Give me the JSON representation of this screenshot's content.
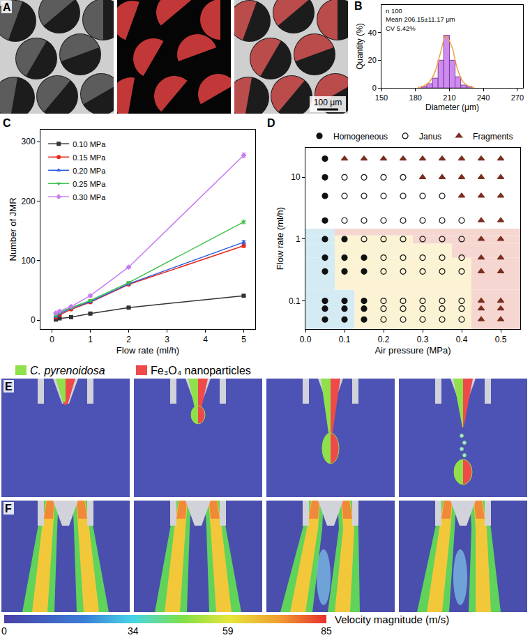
{
  "chart_data": [
    {
      "panel": "B",
      "type": "histogram",
      "annotations": [
        "n 100",
        "Mean 206.15±11.17 μm",
        "CV 5.42%"
      ],
      "x_label": "Diameter (μm)",
      "y_label": "Quantity (%)",
      "bins": [
        185,
        190,
        195,
        200,
        205,
        210,
        215,
        220,
        225,
        230
      ],
      "values": [
        1,
        3,
        7,
        20,
        38,
        20,
        8,
        2,
        1
      ],
      "color": "#cf8cf0",
      "fit": {
        "type": "line",
        "color": "#f0a040",
        "x": [
          182,
          187,
          192,
          197,
          202,
          207,
          212,
          217,
          222,
          227,
          232
        ],
        "values": [
          0.3,
          1.2,
          4,
          11,
          25,
          37.5,
          30,
          14,
          4.5,
          1.2,
          0.3
        ]
      },
      "xlim": [
        150,
        275
      ],
      "xticks": [
        150,
        180,
        210,
        240,
        270
      ],
      "ylim": [
        0,
        60
      ],
      "yticks": [
        0,
        20,
        40
      ]
    },
    {
      "panel": "C",
      "type": "line",
      "x_label": "Flow rate (ml/h)",
      "y_label": "Number of JMR",
      "x": [
        0.1,
        0.2,
        0.5,
        1,
        2,
        5
      ],
      "series": [
        {
          "name": "0.10 MPa",
          "color": "#333333",
          "marker": "square",
          "values": [
            1,
            3,
            5,
            11,
            21,
            41
          ],
          "errors": [
            0.5,
            0.5,
            0.8,
            1,
            1,
            1.5
          ]
        },
        {
          "name": "0.15 MPa",
          "color": "#e8291c",
          "marker": "circle",
          "values": [
            5,
            9,
            18,
            30,
            60,
            125
          ],
          "errors": [
            0.8,
            1,
            1,
            1.5,
            2,
            3
          ]
        },
        {
          "name": "0.20 MPa",
          "color": "#2b5ce0",
          "marker": "triangle-up",
          "values": [
            6,
            11,
            20,
            31,
            61,
            131
          ],
          "errors": [
            0.8,
            1,
            1,
            1.5,
            2,
            3
          ]
        },
        {
          "name": "0.25 MPa",
          "color": "#3cc24a",
          "marker": "triangle-down",
          "values": [
            8,
            13,
            21,
            33,
            63,
            165
          ],
          "errors": [
            1,
            1,
            1.2,
            1.5,
            2,
            3
          ]
        },
        {
          "name": "0.30 MPa",
          "color": "#c77cf2",
          "marker": "diamond",
          "values": [
            12,
            15,
            23,
            41,
            89,
            277
          ],
          "errors": [
            1,
            1,
            1.5,
            2,
            2,
            4
          ]
        }
      ],
      "xlim": [
        -0.3,
        5.3
      ],
      "xticks": [
        0,
        1,
        2,
        3,
        4,
        5
      ],
      "ylim": [
        -15,
        320
      ],
      "yticks": [
        0,
        100,
        200,
        300
      ],
      "legend": "top-left"
    },
    {
      "panel": "D",
      "type": "scatter",
      "log": "y",
      "x_label": "Air pressure (MPa)",
      "y_label": "Flow rate (ml/h)",
      "series": [
        {
          "name": "Homogeneous",
          "color": "#111111",
          "marker": "circle",
          "x": [
            0.05,
            0.1,
            0.15,
            0.05,
            0.1,
            0.15,
            0.05,
            0.1,
            0.15,
            0.05,
            0.1,
            0.15,
            0.05,
            0.1,
            0.15,
            0.05,
            0.1,
            0.05,
            0.05,
            0.05,
            0.05
          ],
          "values": [
            0.05,
            0.05,
            0.05,
            0.075,
            0.075,
            0.075,
            0.1,
            0.1,
            0.1,
            0.3,
            0.3,
            0.3,
            0.5,
            0.5,
            0.5,
            1,
            1,
            2,
            5,
            10,
            20
          ]
        },
        {
          "name": "Janus",
          "color": "#111111",
          "marker": "circle-open",
          "x": [
            0.2,
            0.25,
            0.3,
            0.35,
            0.4,
            0.2,
            0.25,
            0.3,
            0.35,
            0.4,
            0.2,
            0.25,
            0.3,
            0.35,
            0.4,
            0.2,
            0.25,
            0.3,
            0.35,
            0.4,
            0.2,
            0.25,
            0.3,
            0.35,
            0.4,
            0.15,
            0.2,
            0.25,
            0.3,
            0.35,
            0.4,
            0.1,
            0.15,
            0.2,
            0.25,
            0.3,
            0.35,
            0.4,
            0.1,
            0.15,
            0.2,
            0.25,
            0.3,
            0.35,
            0.1,
            0.15,
            0.2,
            0.25
          ],
          "values": [
            0.05,
            0.05,
            0.05,
            0.05,
            0.05,
            0.075,
            0.075,
            0.075,
            0.075,
            0.075,
            0.1,
            0.1,
            0.1,
            0.1,
            0.1,
            0.3,
            0.3,
            0.3,
            0.3,
            0.3,
            0.5,
            0.5,
            0.5,
            0.5,
            0.5,
            1,
            1,
            1,
            1,
            1,
            1,
            2,
            2,
            2,
            2,
            2,
            2,
            2,
            5,
            5,
            5,
            5,
            5,
            5,
            10,
            10,
            10,
            10
          ]
        },
        {
          "name": "Fragments",
          "color": "#7a2e1e",
          "marker": "triangle-up",
          "x": [
            0.45,
            0.5,
            0.45,
            0.5,
            0.45,
            0.5,
            0.45,
            0.5,
            0.45,
            0.5,
            0.45,
            0.5,
            0.45,
            0.5,
            0.4,
            0.45,
            0.5,
            0.3,
            0.35,
            0.4,
            0.45,
            0.5,
            0.1,
            0.15,
            0.2,
            0.25,
            0.3,
            0.35,
            0.4,
            0.45,
            0.5
          ],
          "values": [
            0.05,
            0.05,
            0.075,
            0.075,
            0.1,
            0.1,
            0.3,
            0.3,
            0.5,
            0.5,
            1,
            1,
            2,
            2,
            5,
            5,
            5,
            10,
            10,
            10,
            10,
            10,
            20,
            20,
            20,
            20,
            20,
            20,
            20,
            20,
            20
          ]
        }
      ],
      "xlim": [
        0,
        0.55
      ],
      "xticks": [
        {
          "value": 0,
          "label": "0.0"
        },
        0.1,
        0.2,
        0.3,
        0.4,
        0.5
      ],
      "ylim": [
        0.035,
        30
      ],
      "yticks": [
        0.1,
        1,
        10
      ],
      "legend": "top"
    }
  ],
  "panels": {
    "A": {
      "letter": "A",
      "scale_bar": "100 μm"
    },
    "E": {
      "letter": "E",
      "legend": [
        {
          "name": "C. pyrenoidosa",
          "color": "#8fe04a"
        },
        {
          "name": "Fe₃O₄ nanoparticles",
          "color": "#ef4a4a"
        }
      ]
    },
    "F": {
      "letter": "F",
      "colorbar": {
        "title": "Velocity magnitude (m/s)",
        "range": [
          0,
          85
        ],
        "ticks": [
          0,
          34,
          59,
          85
        ]
      }
    }
  }
}
